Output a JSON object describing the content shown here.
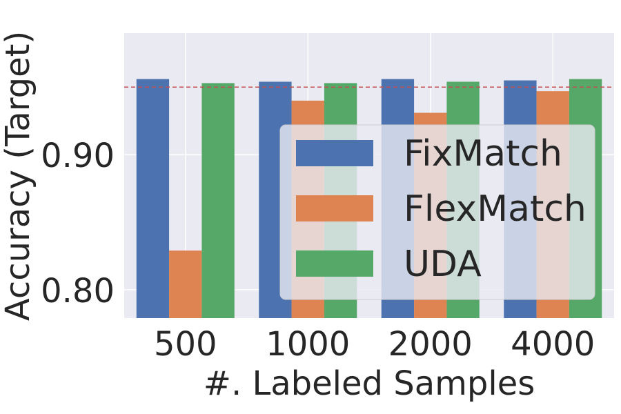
{
  "chart_data": {
    "type": "bar",
    "xlabel": "#. Labeled Samples",
    "ylabel": "Accuracy (Target)",
    "categories": [
      "500",
      "1000",
      "2000",
      "4000"
    ],
    "series": [
      {
        "name": "FixMatch",
        "color": "#4c72b0",
        "values": [
          0.956,
          0.954,
          0.956,
          0.955
        ]
      },
      {
        "name": "FlexMatch",
        "color": "#dd8452",
        "values": [
          0.829,
          0.94,
          0.931,
          0.947
        ]
      },
      {
        "name": "UDA",
        "color": "#55a868",
        "values": [
          0.953,
          0.953,
          0.954,
          0.956
        ]
      }
    ],
    "yticks": [
      {
        "value": 0.8,
        "label": "0.80"
      },
      {
        "value": 0.9,
        "label": "0.90"
      }
    ],
    "ylim": [
      0.779,
      0.99
    ],
    "reference_line": {
      "value": 0.95,
      "color": "#c44e52",
      "style": "dashed"
    },
    "grid": true,
    "legend": "center-right",
    "background": "#eaeaf2"
  }
}
